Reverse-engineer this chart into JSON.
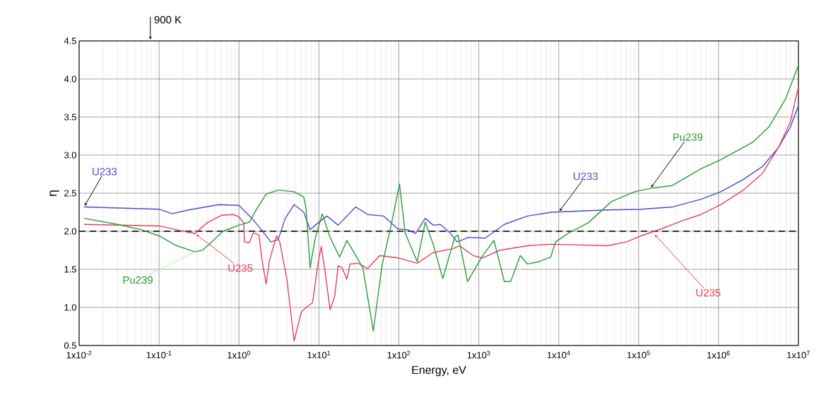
{
  "chart_data": {
    "type": "line",
    "xlabel": "Energy, eV",
    "ylabel": "η",
    "log": "x",
    "grid": true,
    "xlim": [
      0.01,
      10000000.0
    ],
    "ylim": [
      0.5,
      4.5
    ],
    "xticks": [
      {
        "value": 0.01,
        "label": "1x10$^{-2}$"
      },
      {
        "value": 0.1,
        "label": "1x10$^{-1}$"
      },
      {
        "value": 1,
        "label": "1x10$^{0}$"
      },
      {
        "value": 10,
        "label": "1x10$^{1}$"
      },
      {
        "value": 100,
        "label": "1x10$^{2}$"
      },
      {
        "value": 1000,
        "label": "1x10$^{3}$"
      },
      {
        "value": 10000,
        "label": "1x10$^{4}$"
      },
      {
        "value": 100000,
        "label": "1x10$^{5}$"
      },
      {
        "value": 1000000,
        "label": "1x10$^{6}$"
      },
      {
        "value": 10000000,
        "label": "1x10$^{7}$"
      }
    ],
    "yticks": [
      {
        "value": 0.5,
        "label": "0.5"
      },
      {
        "value": 1,
        "label": "1.0"
      },
      {
        "value": 1.5,
        "label": "1.5"
      },
      {
        "value": 2,
        "label": "2.0"
      },
      {
        "value": 2.5,
        "label": "2.5"
      },
      {
        "value": 3,
        "label": "3.0"
      },
      {
        "value": 3.5,
        "label": "3.5"
      },
      {
        "value": 4,
        "label": "4.0"
      },
      {
        "value": 4.5,
        "label": "4.5"
      }
    ],
    "ref_lines": [
      {
        "axis": "y",
        "value": 2,
        "color": "#000000",
        "line_style": "dashed"
      }
    ],
    "series": [
      {
        "name": "U233",
        "color": "#4a4ad8",
        "x": [
          0.0115,
          0.1,
          0.145,
          0.234,
          0.562,
          1,
          1.45,
          1.91,
          2.51,
          3.09,
          3.8,
          4.9,
          6.46,
          7.76,
          9.77,
          12.6,
          17.4,
          28.8,
          40.7,
          64.6,
          97.7,
          129,
          162,
          214,
          269,
          331,
          437,
          537,
          741,
          1200,
          2090,
          4070,
          8130,
          40700,
          107000,
          269000,
          603000,
          1070000,
          2040000,
          3550000,
          5620000,
          7940000,
          10000000
        ],
        "values": [
          2.32,
          2.29,
          2.23,
          2.28,
          2.35,
          2.34,
          2.17,
          2.02,
          1.86,
          1.89,
          2.17,
          2.35,
          2.25,
          2.02,
          2.11,
          2.2,
          2.08,
          2.32,
          2.22,
          2.2,
          2.03,
          2.02,
          1.97,
          2.17,
          2.08,
          2.09,
          1.98,
          1.86,
          1.92,
          1.91,
          2.09,
          2.2,
          2.25,
          2.28,
          2.29,
          2.32,
          2.42,
          2.52,
          2.68,
          2.85,
          3.1,
          3.37,
          3.65
        ]
      },
      {
        "name": "U235",
        "color": "#e8405a",
        "x": [
          0.0115,
          0.1,
          0.204,
          0.282,
          0.398,
          0.603,
          0.851,
          1,
          1.15,
          1.17,
          1.35,
          1.51,
          1.78,
          1.95,
          2.19,
          2.4,
          2.95,
          3.24,
          3.98,
          4.9,
          6.03,
          6.92,
          8.32,
          9.77,
          10.7,
          12,
          13.8,
          15.8,
          17.4,
          19.5,
          22.4,
          24.5,
          30.9,
          40.7,
          57.5,
          97.7,
          170,
          269,
          468,
          575,
          851,
          1120,
          1820,
          4070,
          8130,
          40700,
          70800,
          107000,
          191000,
          355000,
          603000,
          1070000,
          2040000,
          3550000,
          5620000,
          7940000,
          10000000
        ],
        "values": [
          2.09,
          2.07,
          2.0,
          1.97,
          2.11,
          2.21,
          2.22,
          2.19,
          2.11,
          1.86,
          1.85,
          1.98,
          1.95,
          1.61,
          1.31,
          1.61,
          1.94,
          1.86,
          1.37,
          0.56,
          0.94,
          1.0,
          1.06,
          1.58,
          1.8,
          1.46,
          0.97,
          1.15,
          1.55,
          1.52,
          1.37,
          1.57,
          1.58,
          1.51,
          1.68,
          1.65,
          1.58,
          1.72,
          1.77,
          1.81,
          1.68,
          1.65,
          1.75,
          1.81,
          1.83,
          1.81,
          1.86,
          1.94,
          2.03,
          2.14,
          2.22,
          2.35,
          2.54,
          2.76,
          3.1,
          3.44,
          3.9
        ]
      },
      {
        "name": "Pu239",
        "color": "#2e9a3a",
        "x": [
          0.0115,
          0.0302,
          0.0603,
          0.1,
          0.166,
          0.282,
          0.347,
          0.457,
          0.631,
          1,
          1.35,
          1.66,
          2.19,
          3.09,
          4.9,
          6.46,
          6.92,
          7.76,
          8.91,
          11,
          13.8,
          18.2,
          22.4,
          35.5,
          47.9,
          61.7,
          81.3,
          102,
          120,
          170,
          214,
          269,
          355,
          501,
          550,
          724,
          1120,
          1550,
          2090,
          2510,
          3310,
          4070,
          5620,
          7940,
          9120,
          13500,
          23400,
          45700,
          89100,
          155000,
          263000,
          603000,
          1070000,
          2690000,
          4270000,
          6920000,
          10000000
        ],
        "values": [
          2.17,
          2.09,
          2.02,
          1.94,
          1.81,
          1.73,
          1.75,
          1.86,
          2.0,
          2.08,
          2.12,
          2.29,
          2.49,
          2.54,
          2.52,
          2.45,
          2.29,
          1.52,
          1.89,
          2.23,
          1.92,
          1.66,
          1.88,
          1.52,
          0.69,
          1.55,
          2.11,
          2.62,
          1.98,
          1.6,
          2.12,
          1.83,
          1.38,
          1.92,
          1.95,
          1.34,
          1.68,
          1.88,
          1.34,
          1.34,
          1.68,
          1.57,
          1.6,
          1.66,
          1.86,
          1.98,
          2.11,
          2.39,
          2.52,
          2.57,
          2.6,
          2.82,
          2.94,
          3.17,
          3.37,
          3.74,
          4.18
        ]
      }
    ],
    "annotations": [
      "900 K",
      {
        "text": "U233",
        "x": 10000,
        "y": 2.25
      },
      {
        "text": "Pu239",
        "x": 140000,
        "y": 2.56
      },
      {
        "text": "U235",
        "x": 155000,
        "y": 1.97
      }
    ]
  }
}
